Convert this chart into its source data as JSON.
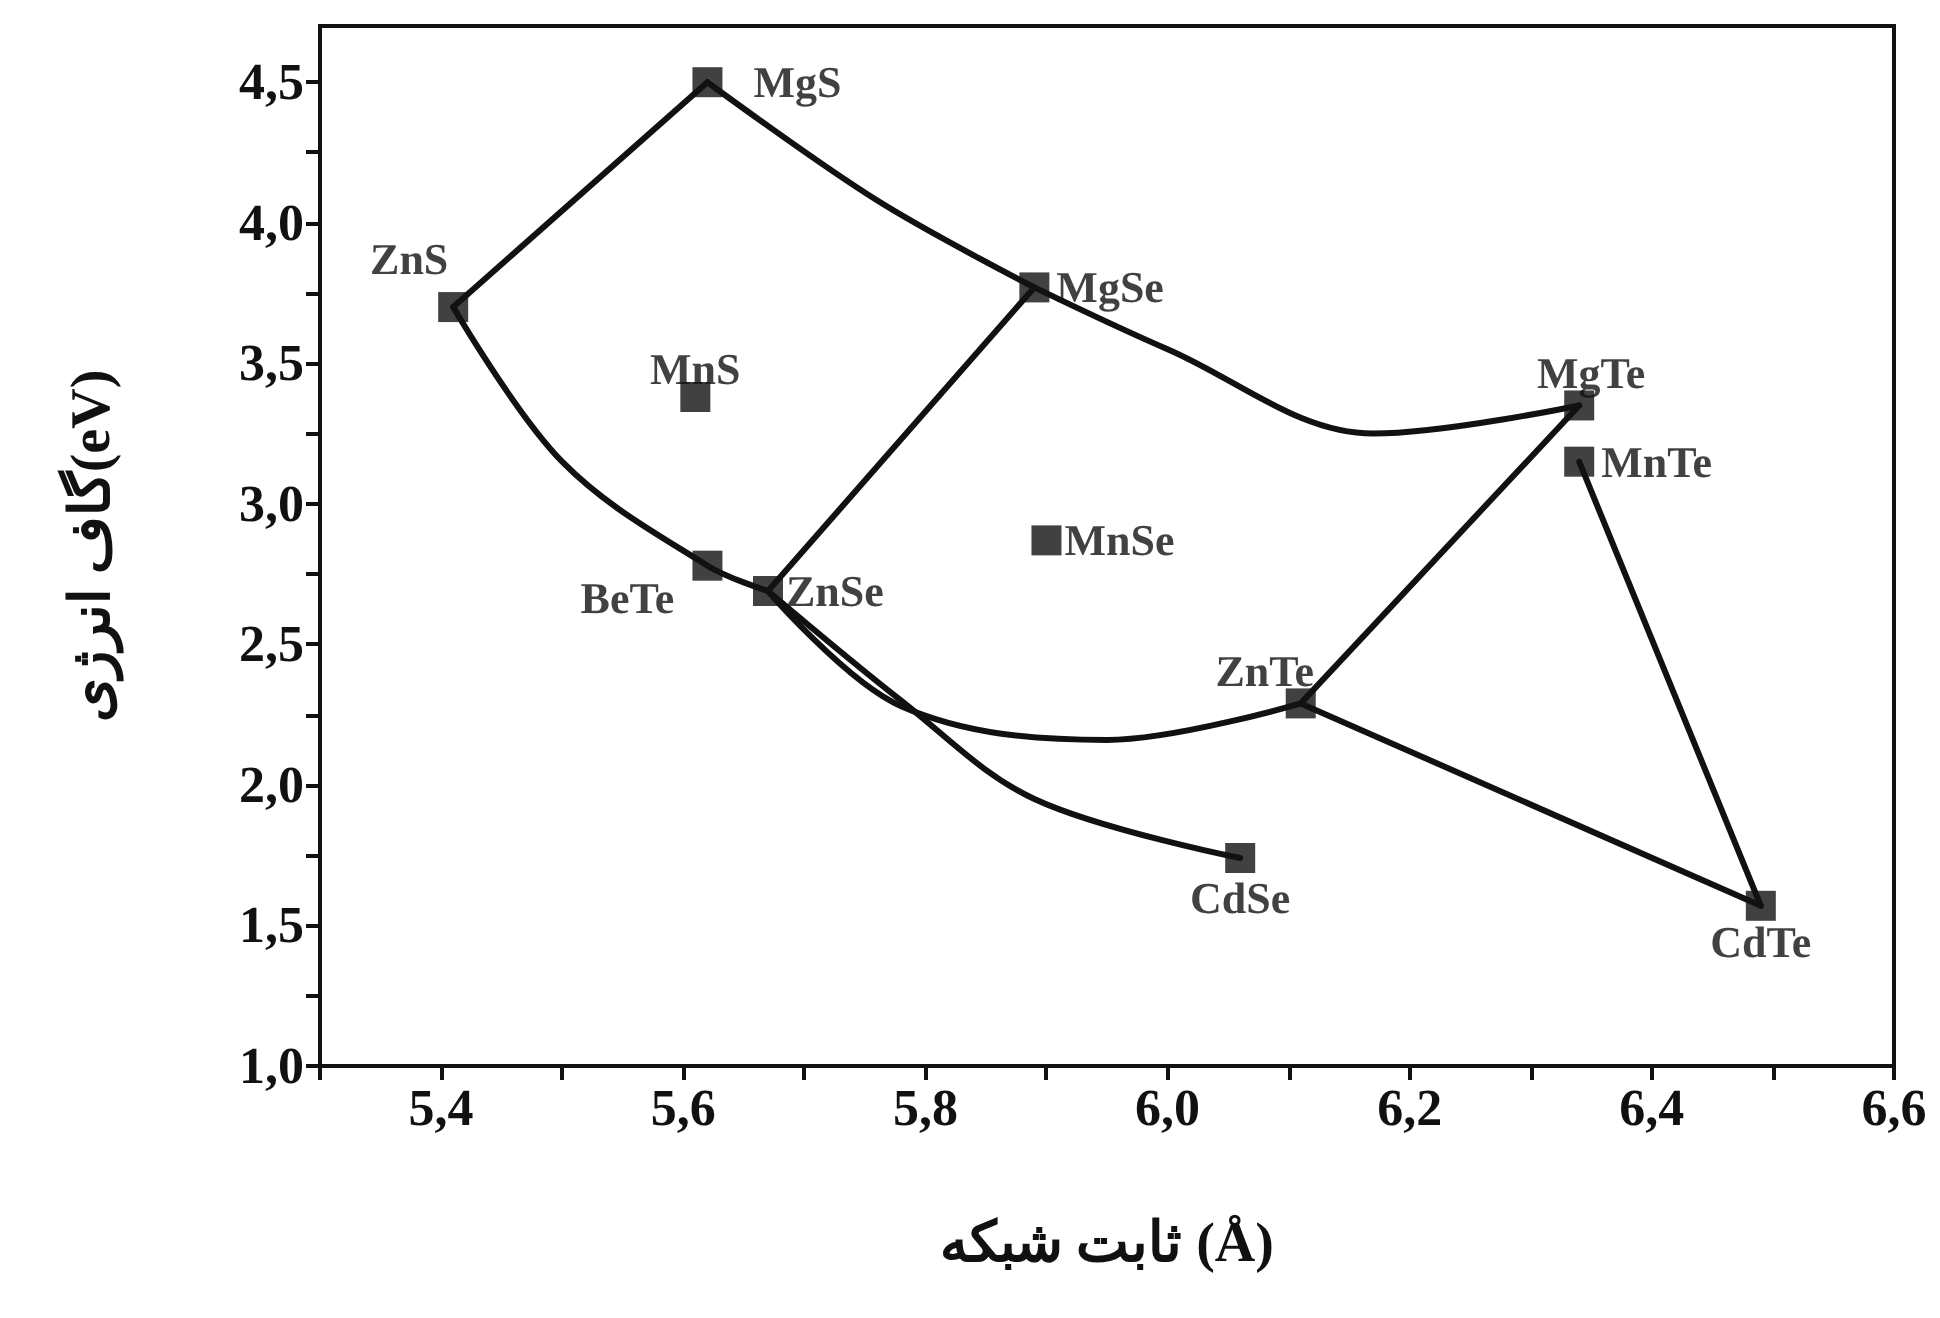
{
  "chart_data": {
    "type": "scatter",
    "xlabel": "ثابت شبکه (Å)",
    "ylabel": "گاف انرژی(eV)",
    "xlim": [
      5.3,
      6.6
    ],
    "ylim": [
      1.0,
      4.7
    ],
    "xticks": [
      {
        "value": 5.3,
        "label": null
      },
      {
        "value": 5.4,
        "label": "5,4"
      },
      {
        "value": 5.5,
        "label": null
      },
      {
        "value": 5.6,
        "label": "5,6"
      },
      {
        "value": 5.7,
        "label": null
      },
      {
        "value": 5.8,
        "label": "5,8"
      },
      {
        "value": 5.9,
        "label": null
      },
      {
        "value": 6.0,
        "label": "6,0"
      },
      {
        "value": 6.1,
        "label": null
      },
      {
        "value": 6.2,
        "label": "6,2"
      },
      {
        "value": 6.3,
        "label": null
      },
      {
        "value": 6.4,
        "label": "6,4"
      },
      {
        "value": 6.5,
        "label": null
      },
      {
        "value": 6.6,
        "label": "6,6"
      }
    ],
    "yticks": [
      {
        "value": 1.0,
        "label": "1,0"
      },
      {
        "value": 1.25,
        "label": null
      },
      {
        "value": 1.5,
        "label": "1,5"
      },
      {
        "value": 1.75,
        "label": null
      },
      {
        "value": 2.0,
        "label": "2,0"
      },
      {
        "value": 2.25,
        "label": null
      },
      {
        "value": 2.5,
        "label": "2,5"
      },
      {
        "value": 2.75,
        "label": null
      },
      {
        "value": 3.0,
        "label": "3,0"
      },
      {
        "value": 3.25,
        "label": null
      },
      {
        "value": 3.5,
        "label": "3,5"
      },
      {
        "value": 3.75,
        "label": null
      },
      {
        "value": 4.0,
        "label": "4,0"
      },
      {
        "value": 4.25,
        "label": null
      },
      {
        "value": 4.5,
        "label": "4,5"
      }
    ],
    "grid": false,
    "marker": "square",
    "series": [
      {
        "type": "scatter",
        "color": "#111111",
        "x": [
          5.41,
          5.62,
          5.89,
          5.61,
          5.62,
          5.67,
          5.9,
          6.34,
          6.34,
          6.11,
          6.06,
          6.49
        ],
        "values": [
          3.7,
          4.5,
          3.77,
          3.38,
          2.78,
          2.69,
          2.87,
          3.35,
          3.15,
          2.29,
          1.74,
          1.57
        ]
      },
      {
        "type": "line",
        "marker": "none",
        "color": "#111111",
        "x": [
          5.41,
          5.62
        ],
        "values": [
          3.7,
          4.5
        ]
      },
      {
        "type": "line",
        "marker": "none",
        "color": "#111111",
        "x": [
          5.62,
          5.76,
          5.89
        ],
        "values": [
          4.5,
          4.08,
          3.77
        ]
      },
      {
        "type": "line",
        "marker": "none",
        "color": "#111111",
        "x": [
          5.89,
          6.0,
          6.17,
          6.34
        ],
        "values": [
          3.77,
          3.55,
          3.25,
          3.35
        ]
      },
      {
        "type": "line",
        "marker": "none",
        "color": "#111111",
        "x": [
          5.89,
          5.67
        ],
        "values": [
          3.77,
          2.69
        ]
      },
      {
        "type": "line",
        "marker": "none",
        "color": "#111111",
        "x": [
          5.41,
          5.5,
          5.62,
          5.67
        ],
        "values": [
          3.7,
          3.15,
          2.78,
          2.69
        ]
      },
      {
        "type": "line",
        "marker": "none",
        "color": "#111111",
        "x": [
          5.67,
          5.78,
          5.89,
          6.06
        ],
        "values": [
          2.69,
          2.3,
          1.95,
          1.74
        ]
      },
      {
        "type": "line",
        "marker": "none",
        "color": "#111111",
        "x": [
          5.67,
          5.78,
          5.95,
          6.11
        ],
        "values": [
          2.69,
          2.28,
          2.16,
          2.29
        ]
      },
      {
        "type": "line",
        "marker": "none",
        "color": "#111111",
        "x": [
          6.11,
          6.34
        ],
        "values": [
          2.29,
          3.35
        ]
      },
      {
        "type": "line",
        "marker": "none",
        "color": "#111111",
        "x": [
          6.11,
          6.49
        ],
        "values": [
          2.29,
          1.57
        ]
      },
      {
        "type": "line",
        "marker": "none",
        "color": "#111111",
        "x": [
          6.34,
          6.49
        ],
        "values": [
          3.15,
          1.57
        ]
      }
    ],
    "annotations": [
      {
        "text": "ZnS",
        "x": 5.41,
        "y": 3.7
      },
      {
        "text": "MgS",
        "x": 5.62,
        "y": 4.5
      },
      {
        "text": "MgSe",
        "x": 5.89,
        "y": 3.77
      },
      {
        "text": "MnS",
        "x": 5.61,
        "y": 3.38
      },
      {
        "text": "BeTe",
        "x": 5.62,
        "y": 2.78
      },
      {
        "text": "ZnSe",
        "x": 5.67,
        "y": 2.69
      },
      {
        "text": "MnSe",
        "x": 5.9,
        "y": 2.87
      },
      {
        "text": "MgTe",
        "x": 6.34,
        "y": 3.35
      },
      {
        "text": "MnTe",
        "x": 6.34,
        "y": 3.15
      },
      {
        "text": "ZnTe",
        "x": 6.11,
        "y": 2.29
      },
      {
        "text": "CdSe",
        "x": 6.06,
        "y": 1.74
      },
      {
        "text": "CdTe",
        "x": 6.49,
        "y": 1.57
      }
    ]
  }
}
